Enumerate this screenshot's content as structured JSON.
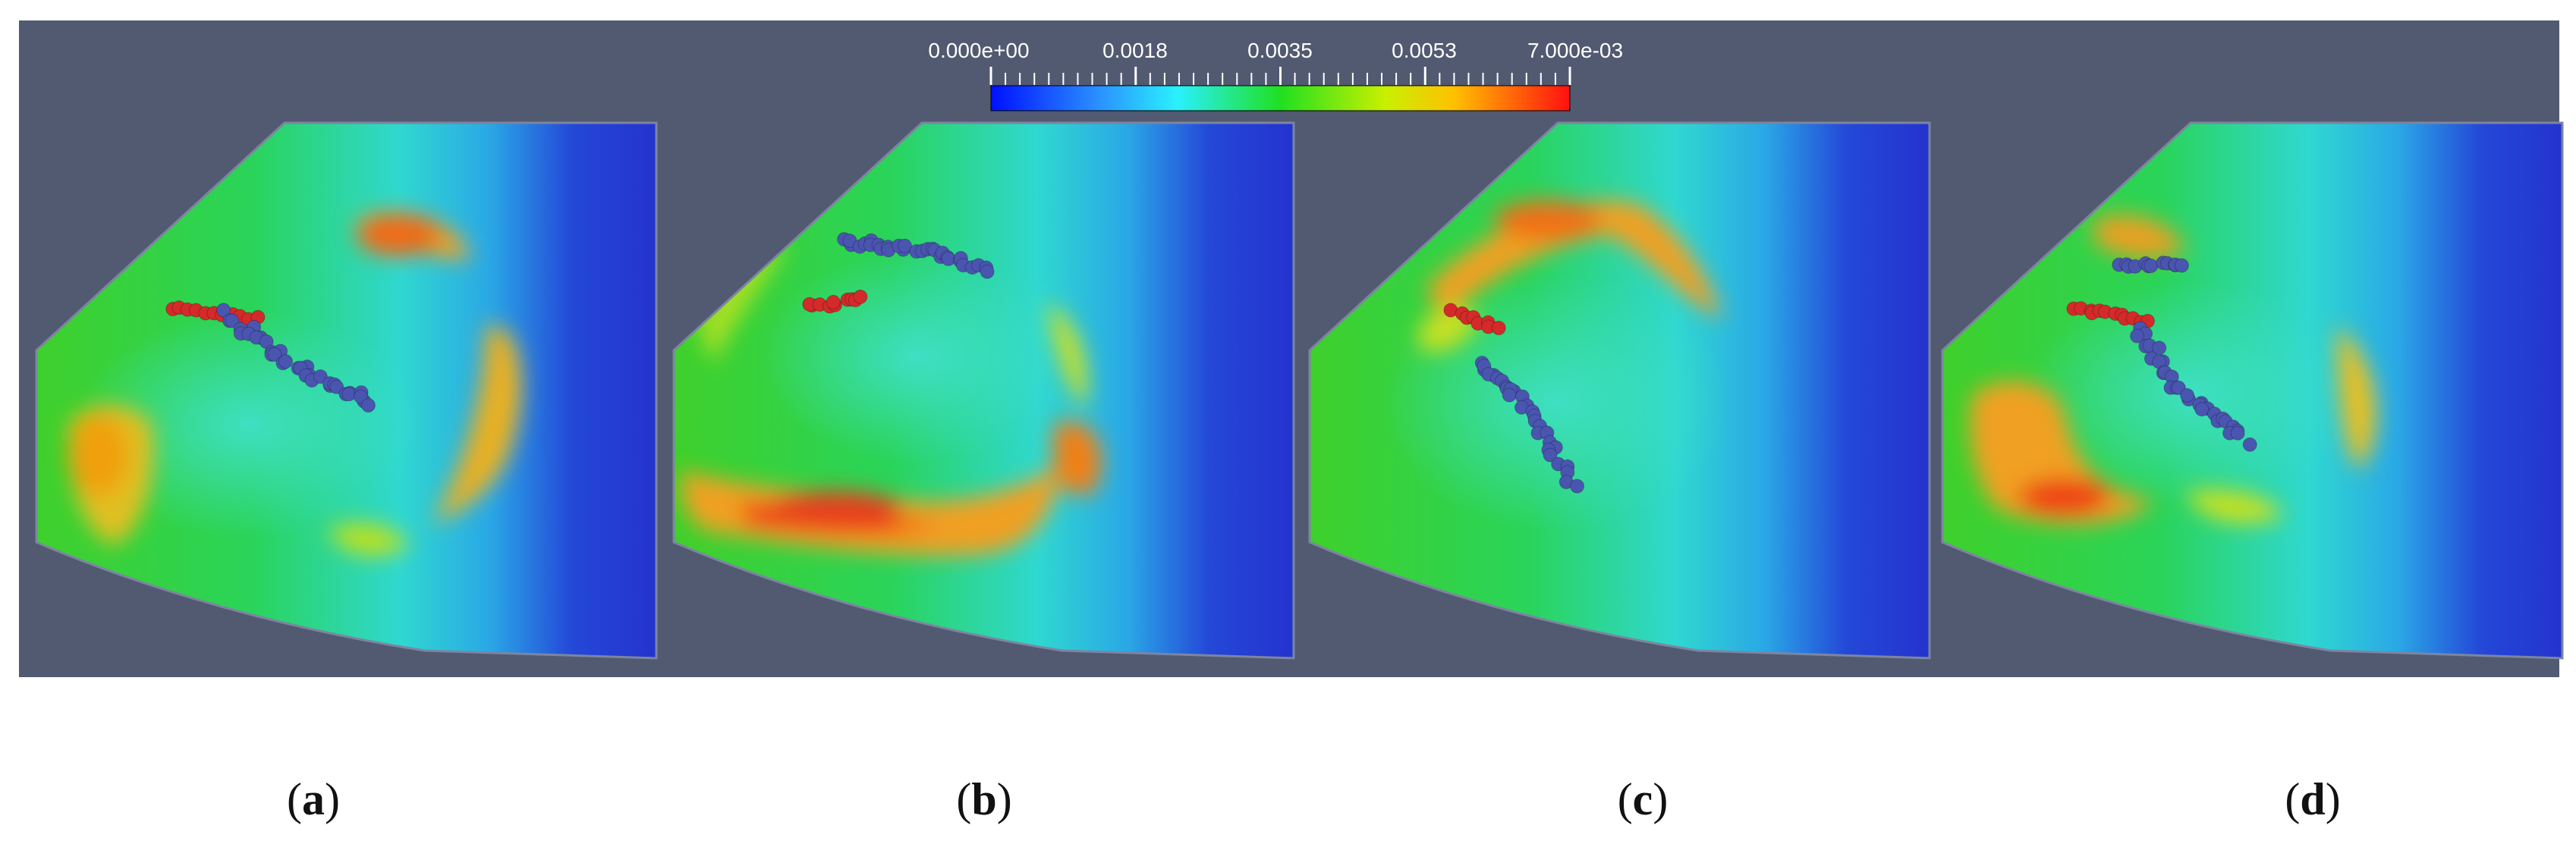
{
  "colorbar": {
    "tick_labels": [
      "0.000e+00",
      "0.0018",
      "0.0035",
      "0.0053",
      "7.000e-03"
    ],
    "range": [
      0.0,
      0.007
    ]
  },
  "panels": [
    {
      "label": "a"
    },
    {
      "label": "b"
    },
    {
      "label": "c"
    },
    {
      "label": "d"
    }
  ],
  "colors": {
    "background": "#525a72",
    "field_low": "#1f2bd0",
    "field_mid": "#1bcf27",
    "field_high": "#f23b12",
    "particle_blue": "#4a55b0",
    "particle_red": "#d42a2a"
  }
}
